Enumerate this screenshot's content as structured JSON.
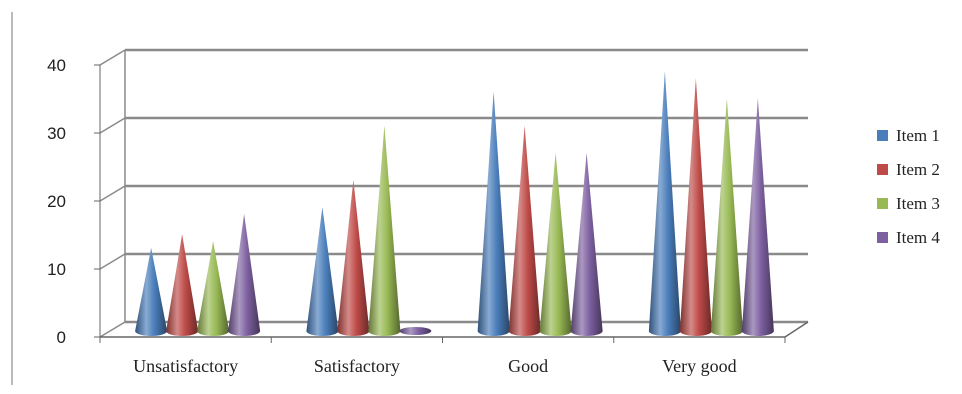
{
  "chart_data": {
    "type": "bar",
    "style": "3d-cone",
    "categories": [
      "Unsatisfactory",
      "Satisfactory",
      "Good",
      "Very good"
    ],
    "series": [
      {
        "name": "Item 1",
        "color": "#4A7EBB",
        "values": [
          12,
          18,
          35,
          38
        ]
      },
      {
        "name": "Item 2",
        "color": "#BE4B48",
        "values": [
          14,
          22,
          30,
          37
        ]
      },
      {
        "name": "Item 3",
        "color": "#98B954",
        "values": [
          13,
          30,
          26,
          34
        ]
      },
      {
        "name": "Item 4",
        "color": "#7D60A0",
        "values": [
          17,
          0,
          26,
          34
        ]
      }
    ],
    "yticks": [
      "0",
      "10",
      "20",
      "30",
      "40"
    ],
    "ylim": [
      0,
      40
    ],
    "grid": true,
    "legend": "right"
  }
}
